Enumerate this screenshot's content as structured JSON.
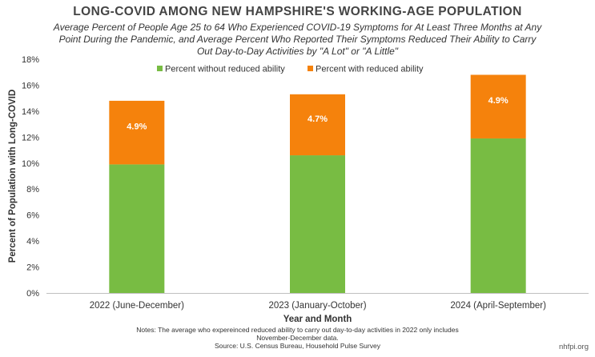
{
  "title": "LONG-COVID AMONG NEW HAMPSHIRE'S WORKING-AGE POPULATION",
  "subtitle_lines": [
    "Average Percent of People Age 25 to 64 Who Experienced COVID-19 Symptoms for At Least Three Months at Any",
    "Point During the Pandemic, and Average Percent Who Reported Their Symptoms Reduced Their Ability to Carry",
    "Out Day-to-Day Activities by \"A Lot\" or \"A Little\""
  ],
  "notes": [
    "Notes: The average who expereinced reduced ability to carry out day-to-day activities in 2022 only includes",
    "November-December data.",
    "Source: U.S. Census Bureau, Household Pulse Survey"
  ],
  "site": "nhfpi.org",
  "chart_data": {
    "type": "bar",
    "stacked": true,
    "categories": [
      "2022 (June-December)",
      "2023 (January-October)",
      "2024 (April-September)"
    ],
    "series": [
      {
        "name": "Percent without reduced ability",
        "values": [
          9.9,
          10.6,
          11.9
        ],
        "color": "#78bc43"
      },
      {
        "name": "Percent with reduced ability",
        "values": [
          4.9,
          4.7,
          4.9
        ],
        "color": "#f5820c",
        "data_labels": [
          "4.9%",
          "4.7%",
          "4.9%"
        ]
      }
    ],
    "xlabel": "Year and Month",
    "ylabel": "Percent of Population with Long-COVID",
    "ylim": [
      0,
      18
    ],
    "yticks": [
      "0%",
      "2%",
      "4%",
      "6%",
      "8%",
      "10%",
      "12%",
      "14%",
      "16%",
      "18%"
    ],
    "grid": false,
    "legend": "top-center"
  }
}
